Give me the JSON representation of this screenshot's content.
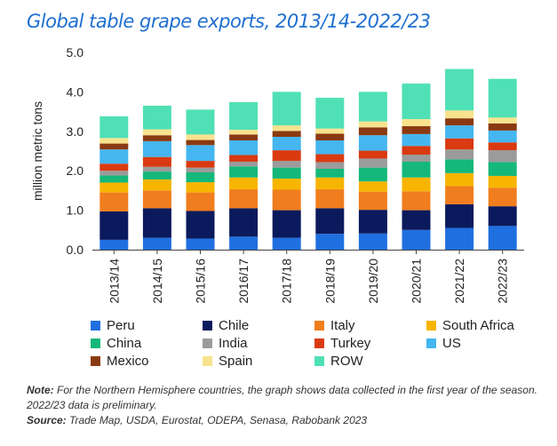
{
  "title": "Global table grape exports, 2013/14-2022/23",
  "chart_data": {
    "type": "bar",
    "stacked": true,
    "categories": [
      "2013/14",
      "2014/15",
      "2015/16",
      "2016/17",
      "2017/18",
      "2018/19",
      "2019/20",
      "2020/21",
      "2021/22",
      "2022/23"
    ],
    "ylabel": "million metric tons",
    "ylim": [
      0,
      5.0
    ],
    "yticks": [
      "0.0",
      "1.0",
      "2.0",
      "3.0",
      "4.0",
      "5.0"
    ],
    "grid": false,
    "legend_position": "bottom",
    "series": [
      {
        "name": "Peru",
        "color": "#1f6fe0",
        "values": [
          0.25,
          0.3,
          0.28,
          0.33,
          0.3,
          0.4,
          0.41,
          0.5,
          0.55,
          0.6
        ]
      },
      {
        "name": "Chile",
        "color": "#0b1a5c",
        "values": [
          0.72,
          0.75,
          0.7,
          0.72,
          0.7,
          0.65,
          0.6,
          0.5,
          0.6,
          0.5
        ]
      },
      {
        "name": "Italy",
        "color": "#f07d1e",
        "values": [
          0.48,
          0.45,
          0.47,
          0.48,
          0.52,
          0.48,
          0.46,
          0.48,
          0.46,
          0.47
        ]
      },
      {
        "name": "South Africa",
        "color": "#f7b500",
        "values": [
          0.25,
          0.28,
          0.26,
          0.3,
          0.28,
          0.3,
          0.26,
          0.35,
          0.33,
          0.3
        ]
      },
      {
        "name": "China",
        "color": "#15b87a",
        "values": [
          0.18,
          0.2,
          0.25,
          0.28,
          0.28,
          0.22,
          0.35,
          0.4,
          0.35,
          0.35
        ]
      },
      {
        "name": "India",
        "color": "#9b9b9b",
        "values": [
          0.12,
          0.12,
          0.12,
          0.12,
          0.17,
          0.17,
          0.23,
          0.18,
          0.25,
          0.3
        ]
      },
      {
        "name": "Turkey",
        "color": "#d93a10",
        "values": [
          0.18,
          0.25,
          0.17,
          0.17,
          0.27,
          0.2,
          0.2,
          0.22,
          0.28,
          0.2
        ]
      },
      {
        "name": "US",
        "color": "#45b6f0",
        "values": [
          0.36,
          0.4,
          0.4,
          0.37,
          0.34,
          0.35,
          0.39,
          0.3,
          0.33,
          0.3
        ]
      },
      {
        "name": "Mexico",
        "color": "#8a3a12",
        "values": [
          0.15,
          0.15,
          0.13,
          0.15,
          0.15,
          0.17,
          0.2,
          0.2,
          0.18,
          0.18
        ]
      },
      {
        "name": "Spain",
        "color": "#f8e28e",
        "values": [
          0.14,
          0.15,
          0.14,
          0.12,
          0.14,
          0.13,
          0.15,
          0.18,
          0.2,
          0.15
        ]
      },
      {
        "name": "ROW",
        "color": "#50e0b5",
        "values": [
          0.55,
          0.6,
          0.63,
          0.7,
          0.85,
          0.78,
          0.75,
          0.9,
          1.05,
          0.98
        ]
      }
    ]
  },
  "footnote": {
    "note_label": "Note:",
    "note_text": " For the Northern Hemisphere countries, the graph shows data collected in the first year of the season. 2022/23 data is preliminary.",
    "source_label": "Source:",
    "source_text": " Trade Map, USDA, Eurostat, ODEPA, Senasa, Rabobank 2023"
  }
}
